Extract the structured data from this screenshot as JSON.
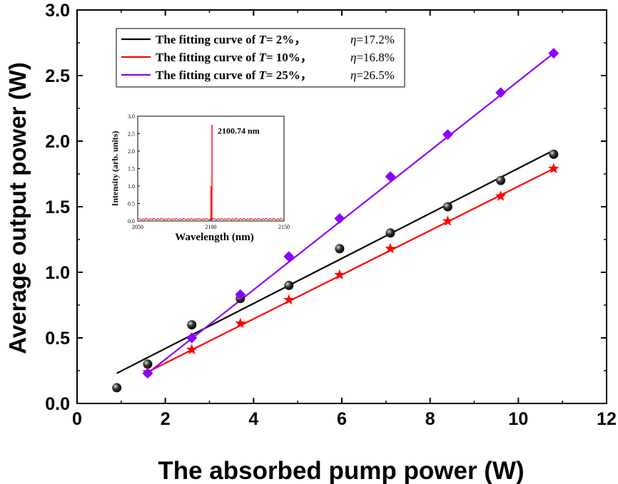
{
  "chart_data": {
    "type": "scatter",
    "xlabel": "The absorbed pump power (W)",
    "ylabel": "Average output power (W)",
    "xlim": [
      0,
      12
    ],
    "ylim": [
      0,
      3.0
    ],
    "xticks": [
      "0",
      "2",
      "4",
      "6",
      "8",
      "10",
      "12"
    ],
    "yticks": [
      "0.0",
      "0.5",
      "1.0",
      "1.5",
      "2.0",
      "2.5",
      "3.0"
    ],
    "grid": false,
    "legend_position": "top-left",
    "series": [
      {
        "marker": "sphere",
        "color": "#000000",
        "x": [
          0.9,
          1.6,
          2.6,
          3.7,
          4.8,
          5.95,
          7.1,
          8.4,
          9.6,
          10.8
        ],
        "y": [
          0.12,
          0.3,
          0.6,
          0.8,
          0.9,
          1.18,
          1.3,
          1.5,
          1.7,
          1.9
        ]
      },
      {
        "marker": "star",
        "color": "#ff0000",
        "x": [
          1.6,
          2.6,
          3.7,
          4.8,
          5.95,
          7.1,
          8.4,
          9.6,
          10.8
        ],
        "y": [
          0.24,
          0.41,
          0.61,
          0.79,
          0.98,
          1.18,
          1.39,
          1.58,
          1.79
        ]
      },
      {
        "marker": "diamond",
        "color": "#8b00ff",
        "x": [
          1.6,
          2.6,
          3.7,
          4.8,
          5.95,
          7.1,
          8.4,
          9.6,
          10.8
        ],
        "y": [
          0.23,
          0.5,
          0.83,
          1.12,
          1.41,
          1.73,
          2.05,
          2.37,
          2.67
        ]
      }
    ],
    "fits": [
      {
        "color": "#000000",
        "x": [
          0.9,
          10.8
        ],
        "y": [
          0.23,
          1.93
        ],
        "label_prefix": "The fitting curve of ",
        "t_var": "T",
        "t_value": "= 2%，",
        "eta_var": "η",
        "eta_value": "=17.2%"
      },
      {
        "color": "#ff0000",
        "x": [
          1.6,
          10.8
        ],
        "y": [
          0.24,
          1.79
        ],
        "label_prefix": "The fitting curve of ",
        "t_var": "T",
        "t_value": "= 10%，",
        "eta_var": "η",
        "eta_value": "=16.8%"
      },
      {
        "color": "#8b00ff",
        "x": [
          1.6,
          10.8
        ],
        "y": [
          0.23,
          2.67
        ],
        "label_prefix": "The fitting curve of ",
        "t_var": "T",
        "t_value": "= 25%，",
        "eta_var": "η",
        "eta_value": "=26.5%"
      }
    ],
    "inset": {
      "type": "line",
      "xlabel": "Wavelength (nm)",
      "ylabel": "Intensity (arb. units)",
      "xlim": [
        2050,
        2150
      ],
      "ylim": [
        0,
        3.0
      ],
      "xticks": [
        "2050",
        "2100",
        "2150"
      ],
      "yticks": [
        "0.0",
        "0.5",
        "1.0",
        "1.5",
        "2.0",
        "2.5",
        "3.0"
      ],
      "annotation": "2100.74 nm",
      "color": "#ff0000",
      "peak_x": 2100.74,
      "peak_y": 2.75,
      "secondary_peak_y": 1.0,
      "baseline_y": 0.05
    }
  }
}
